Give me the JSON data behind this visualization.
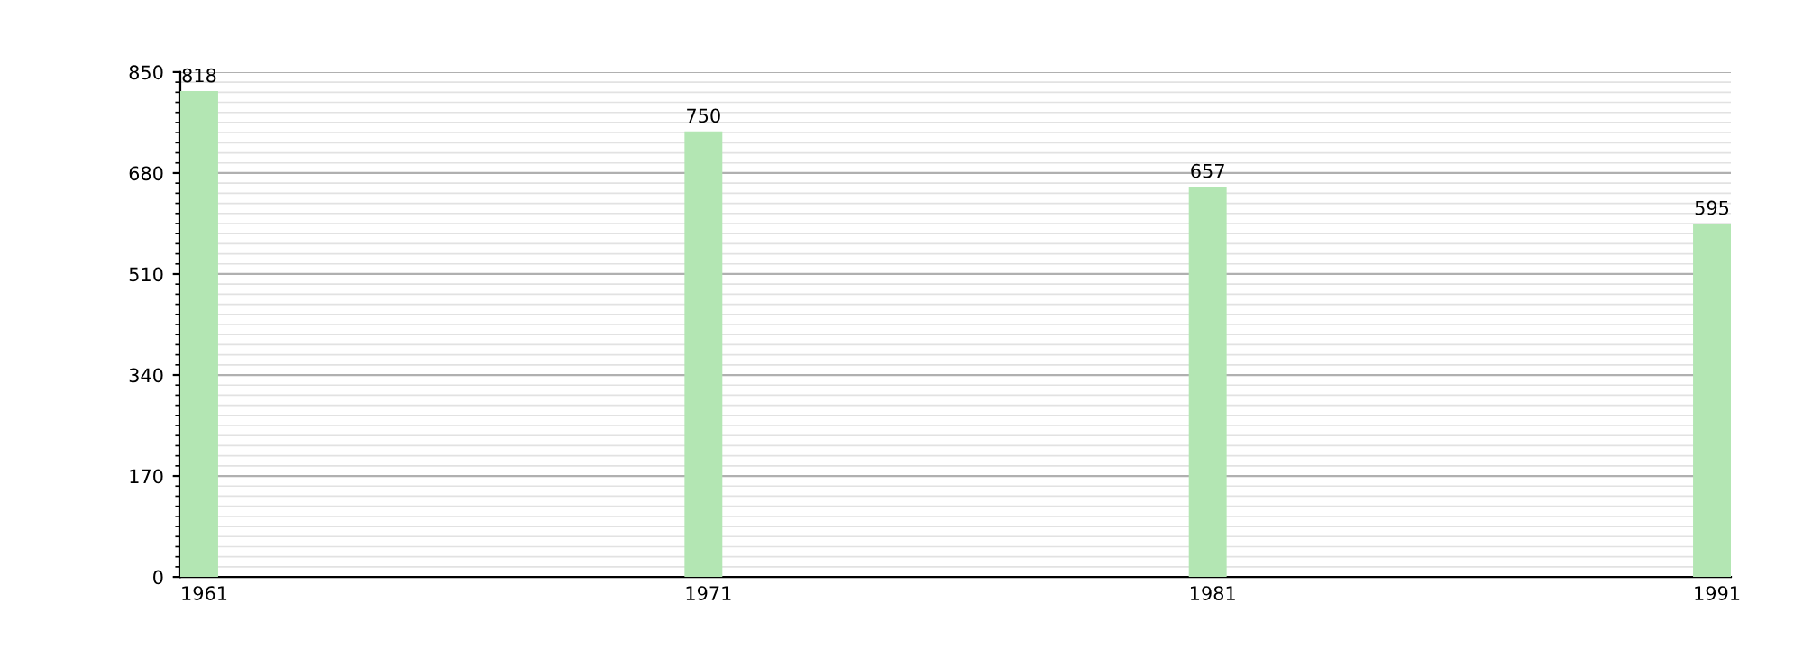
{
  "chart_data": {
    "type": "bar",
    "categories": [
      "1961",
      "1971",
      "1981",
      "1991"
    ],
    "values": [
      818,
      750,
      657,
      595
    ],
    "color": "#b3e6b3",
    "ylim": [
      0,
      850
    ],
    "yticks": [
      0,
      170,
      340,
      510,
      680,
      850
    ],
    "grid": "y",
    "data_labels": true
  }
}
